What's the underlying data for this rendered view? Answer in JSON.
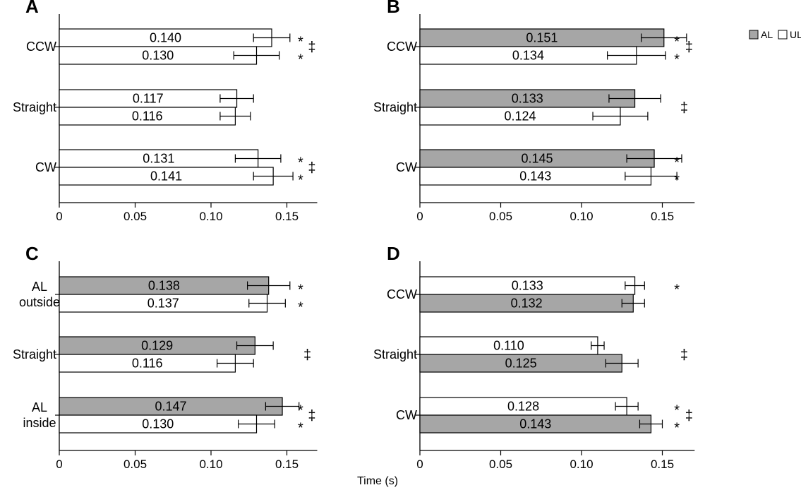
{
  "chart_data": [
    {
      "panel": "A",
      "type": "bar",
      "orientation": "horizontal",
      "xlim": [
        0,
        0.17
      ],
      "xticks": [
        "0",
        "0.05",
        "0.10",
        "0.15"
      ],
      "groups": [
        {
          "label": [
            "CCW"
          ],
          "bars": [
            {
              "value": 0.14,
              "label": "0.140",
              "error": 0.012,
              "fill": "#ffffff",
              "sig": "*"
            },
            {
              "value": 0.13,
              "label": "0.130",
              "error": 0.015,
              "fill": "#ffffff",
              "sig": "*"
            }
          ],
          "group_sig": "‡"
        },
        {
          "label": [
            "Straight"
          ],
          "bars": [
            {
              "value": 0.117,
              "label": "0.117",
              "error": 0.011,
              "fill": "#ffffff",
              "sig": ""
            },
            {
              "value": 0.116,
              "label": "0.116",
              "error": 0.01,
              "fill": "#ffffff",
              "sig": ""
            }
          ],
          "group_sig": ""
        },
        {
          "label": [
            "CW"
          ],
          "bars": [
            {
              "value": 0.131,
              "label": "0.131",
              "error": 0.015,
              "fill": "#ffffff",
              "sig": "*"
            },
            {
              "value": 0.141,
              "label": "0.141",
              "error": 0.013,
              "fill": "#ffffff",
              "sig": "*"
            }
          ],
          "group_sig": "‡"
        }
      ]
    },
    {
      "panel": "B",
      "type": "bar",
      "orientation": "horizontal",
      "xlim": [
        0,
        0.17
      ],
      "xticks": [
        "0",
        "0.05",
        "0.10",
        "0.15"
      ],
      "groups": [
        {
          "label": [
            "CCW"
          ],
          "bars": [
            {
              "value": 0.151,
              "label": "0.151",
              "error": 0.014,
              "fill": "#a6a6a6",
              "sig": "*"
            },
            {
              "value": 0.134,
              "label": "0.134",
              "error": 0.018,
              "fill": "#ffffff",
              "sig": "*"
            }
          ],
          "group_sig": "‡"
        },
        {
          "label": [
            "Straight"
          ],
          "bars": [
            {
              "value": 0.133,
              "label": "0.133",
              "error": 0.016,
              "fill": "#a6a6a6",
              "sig": ""
            },
            {
              "value": 0.124,
              "label": "0.124",
              "error": 0.017,
              "fill": "#ffffff",
              "sig": ""
            }
          ],
          "group_sig": "‡"
        },
        {
          "label": [
            "CW"
          ],
          "bars": [
            {
              "value": 0.145,
              "label": "0.145",
              "error": 0.017,
              "fill": "#a6a6a6",
              "sig": "*"
            },
            {
              "value": 0.143,
              "label": "0.143",
              "error": 0.016,
              "fill": "#ffffff",
              "sig": "*"
            }
          ],
          "group_sig": ""
        }
      ]
    },
    {
      "panel": "C",
      "type": "bar",
      "orientation": "horizontal",
      "xlim": [
        0,
        0.17
      ],
      "xticks": [
        "0",
        "0.05",
        "0.10",
        "0.15"
      ],
      "groups": [
        {
          "label": [
            "AL",
            "outside"
          ],
          "bars": [
            {
              "value": 0.138,
              "label": "0.138",
              "error": 0.014,
              "fill": "#a6a6a6",
              "sig": "*"
            },
            {
              "value": 0.137,
              "label": "0.137",
              "error": 0.012,
              "fill": "#ffffff",
              "sig": "*"
            }
          ],
          "group_sig": ""
        },
        {
          "label": [
            "Straight"
          ],
          "bars": [
            {
              "value": 0.129,
              "label": "0.129",
              "error": 0.012,
              "fill": "#a6a6a6",
              "sig": ""
            },
            {
              "value": 0.116,
              "label": "0.116",
              "error": 0.012,
              "fill": "#ffffff",
              "sig": ""
            }
          ],
          "group_sig": "‡"
        },
        {
          "label": [
            "AL",
            "inside"
          ],
          "bars": [
            {
              "value": 0.147,
              "label": "0.147",
              "error": 0.011,
              "fill": "#a6a6a6",
              "sig": "*"
            },
            {
              "value": 0.13,
              "label": "0.130",
              "error": 0.012,
              "fill": "#ffffff",
              "sig": "*"
            }
          ],
          "group_sig": "‡"
        }
      ]
    },
    {
      "panel": "D",
      "type": "bar",
      "orientation": "horizontal",
      "xlim": [
        0,
        0.17
      ],
      "xticks": [
        "0",
        "0.05",
        "0.10",
        "0.15"
      ],
      "groups": [
        {
          "label": [
            "CCW"
          ],
          "bars": [
            {
              "value": 0.133,
              "label": "0.133",
              "error": 0.006,
              "fill": "#ffffff",
              "sig": "*"
            },
            {
              "value": 0.132,
              "label": "0.132",
              "error": 0.007,
              "fill": "#a6a6a6",
              "sig": ""
            }
          ],
          "group_sig": ""
        },
        {
          "label": [
            "Straight"
          ],
          "bars": [
            {
              "value": 0.11,
              "label": "0.110",
              "error": 0.004,
              "fill": "#ffffff",
              "sig": ""
            },
            {
              "value": 0.125,
              "label": "0.125",
              "error": 0.01,
              "fill": "#a6a6a6",
              "sig": ""
            }
          ],
          "group_sig": "‡"
        },
        {
          "label": [
            "CW"
          ],
          "bars": [
            {
              "value": 0.128,
              "label": "0.128",
              "error": 0.007,
              "fill": "#ffffff",
              "sig": "*"
            },
            {
              "value": 0.143,
              "label": "0.143",
              "error": 0.007,
              "fill": "#a6a6a6",
              "sig": "*"
            }
          ],
          "group_sig": "‡"
        }
      ]
    }
  ],
  "xlabel": "Time (s)",
  "legend": [
    {
      "name": "AL",
      "color": "#a6a6a6"
    },
    {
      "name": "UL",
      "color": "#ffffff"
    }
  ],
  "legend_placement": "top-right"
}
